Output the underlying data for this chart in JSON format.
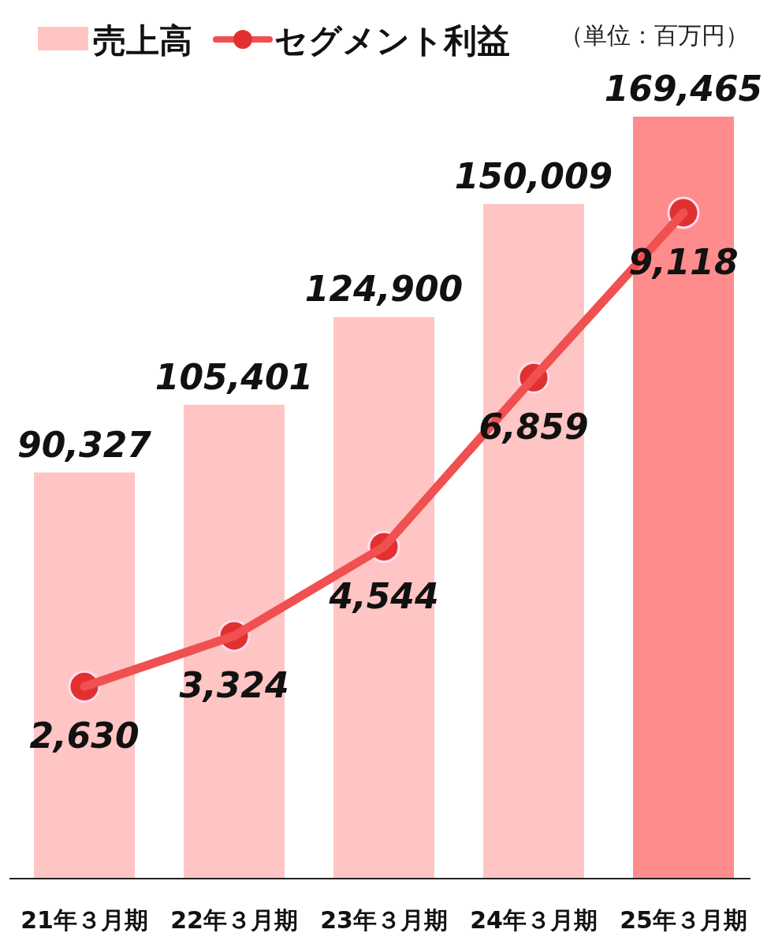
{
  "chart_data": {
    "type": "bar",
    "categories": [
      "21年３月期",
      "22年３月期",
      "23年３月期",
      "24年３月期",
      "25年３月期"
    ],
    "series": [
      {
        "name": "売上高",
        "color": "#ffc4c4",
        "colors": [
          "#ffc4c4",
          "#ffc4c4",
          "#ffc4c4",
          "#ffc4c4",
          "#ff8c8c"
        ],
        "values": [
          90327,
          105401,
          124900,
          150009,
          169465
        ],
        "value_labels": [
          "90,327",
          "105,401",
          "124,900",
          "150,009",
          "169,465"
        ]
      },
      {
        "name": "セグメント利益",
        "type": "line",
        "axis": "y2",
        "color": "#f05050",
        "values": [
          2630,
          3324,
          4544,
          6859,
          9118
        ],
        "value_labels": [
          "2,630",
          "3,324",
          "4,544",
          "6,859",
          "9,118"
        ]
      }
    ],
    "marker": "circle",
    "legend": "top left",
    "annotations": [
      "（単位：百万円）"
    ]
  }
}
